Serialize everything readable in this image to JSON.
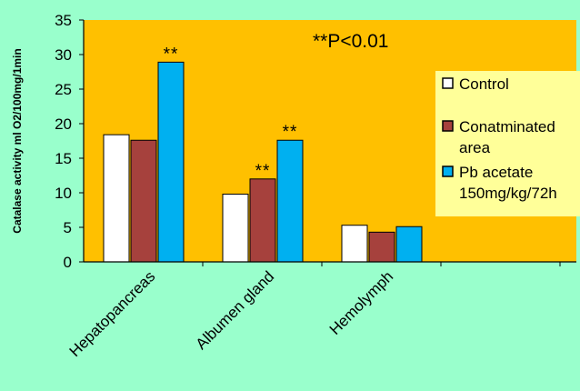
{
  "colors": {
    "page_bg": "#99FFCC",
    "plot_bg": "#FFC000",
    "legend_bg": "#FFFF99"
  },
  "chart_data": {
    "type": "bar",
    "title": "",
    "ylabel": "Catalase activity ml O2/100mg/1min",
    "xlabel": "",
    "ylim": [
      0,
      35
    ],
    "yticks": [
      0,
      5,
      10,
      15,
      20,
      25,
      30,
      35
    ],
    "grid": false,
    "categories": [
      "Hepatopancreas",
      "Albumen gland",
      "Hemolymph"
    ],
    "series": [
      {
        "name": "Control",
        "color": "#FFFFFF",
        "values": [
          18.4,
          9.8,
          5.3
        ]
      },
      {
        "name": "Conatminated area",
        "color": "#A6413D",
        "values": [
          17.6,
          12.0,
          4.3
        ]
      },
      {
        "name": "Pb acetate 150mg/kg/72h",
        "color": "#00B0F0",
        "values": [
          28.9,
          17.6,
          5.1
        ]
      }
    ],
    "significance_marks": [
      {
        "category": 0,
        "series": 2,
        "text": "**"
      },
      {
        "category": 1,
        "series": 1,
        "text": "**"
      },
      {
        "category": 1,
        "series": 2,
        "text": "**"
      }
    ],
    "annotation": "**P<0.01",
    "legend_placement": "right"
  }
}
